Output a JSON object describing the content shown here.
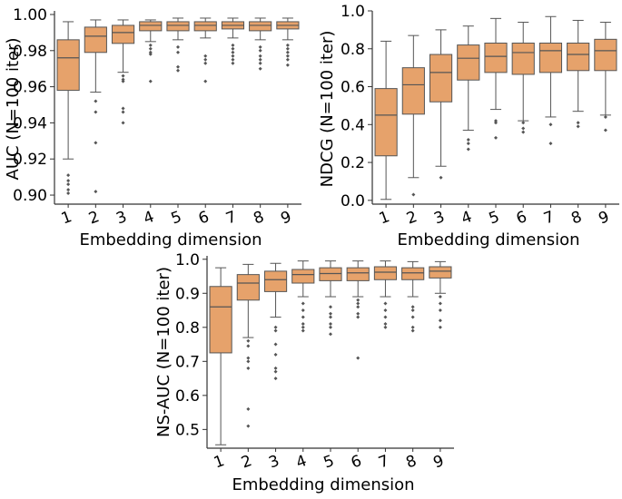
{
  "colors": {
    "box_fill": "#E6A26B",
    "box_edge": "#555555",
    "outlier": "#555555",
    "axis": "#333333"
  },
  "chart_data": [
    {
      "type": "boxplot",
      "id": "auc",
      "title": "",
      "xlabel": "Embedding dimension",
      "ylabel": "AUC (N=100 iter)",
      "categories": [
        "1",
        "2",
        "3",
        "4",
        "5",
        "6",
        "7",
        "8",
        "9"
      ],
      "ylim": [
        0.895,
        1.002
      ],
      "yticks": [
        0.9,
        0.92,
        0.94,
        0.96,
        0.98,
        1.0
      ],
      "ytick_labels": [
        "0.90",
        "0.92",
        "0.94",
        "0.96",
        "0.98",
        "1.00"
      ],
      "boxes": [
        {
          "whislo": 0.92,
          "q1": 0.958,
          "med": 0.976,
          "q3": 0.986,
          "whishi": 0.996,
          "fliers": [
            0.911,
            0.908,
            0.906,
            0.903,
            0.901
          ]
        },
        {
          "whislo": 0.957,
          "q1": 0.979,
          "med": 0.988,
          "q3": 0.993,
          "whishi": 0.997,
          "fliers": [
            0.952,
            0.946,
            0.929,
            0.902
          ]
        },
        {
          "whislo": 0.968,
          "q1": 0.984,
          "med": 0.99,
          "q3": 0.994,
          "whishi": 0.997,
          "fliers": [
            0.966,
            0.964,
            0.963,
            0.948,
            0.946,
            0.94
          ]
        },
        {
          "whislo": 0.985,
          "q1": 0.991,
          "med": 0.994,
          "q3": 0.996,
          "whishi": 0.997,
          "fliers": [
            0.983,
            0.981,
            0.979,
            0.978,
            0.963
          ]
        },
        {
          "whislo": 0.986,
          "q1": 0.991,
          "med": 0.994,
          "q3": 0.996,
          "whishi": 0.998,
          "fliers": [
            0.982,
            0.979,
            0.971,
            0.969
          ]
        },
        {
          "whislo": 0.987,
          "q1": 0.991,
          "med": 0.994,
          "q3": 0.996,
          "whishi": 0.998,
          "fliers": [
            0.977,
            0.975,
            0.973,
            0.963
          ]
        },
        {
          "whislo": 0.987,
          "q1": 0.992,
          "med": 0.994,
          "q3": 0.996,
          "whishi": 0.998,
          "fliers": [
            0.983,
            0.981,
            0.979,
            0.977,
            0.975,
            0.973
          ]
        },
        {
          "whislo": 0.986,
          "q1": 0.991,
          "med": 0.994,
          "q3": 0.996,
          "whishi": 0.998,
          "fliers": [
            0.982,
            0.98,
            0.977,
            0.975,
            0.973,
            0.97
          ]
        },
        {
          "whislo": 0.986,
          "q1": 0.992,
          "med": 0.994,
          "q3": 0.996,
          "whishi": 0.998,
          "fliers": [
            0.983,
            0.981,
            0.979,
            0.977,
            0.975,
            0.972
          ]
        }
      ]
    },
    {
      "type": "boxplot",
      "id": "ndcg",
      "title": "",
      "xlabel": "Embedding dimension",
      "ylabel": "NDCG (N=100 iter)",
      "categories": [
        "1",
        "2",
        "3",
        "4",
        "5",
        "6",
        "7",
        "8",
        "9"
      ],
      "ylim": [
        -0.02,
        1.0
      ],
      "yticks": [
        0.0,
        0.2,
        0.4,
        0.6,
        0.8,
        1.0
      ],
      "ytick_labels": [
        "0.0",
        "0.2",
        "0.4",
        "0.6",
        "0.8",
        "1.0"
      ],
      "boxes": [
        {
          "whislo": 0.005,
          "q1": 0.235,
          "med": 0.45,
          "q3": 0.59,
          "whishi": 0.84,
          "fliers": []
        },
        {
          "whislo": 0.12,
          "q1": 0.455,
          "med": 0.61,
          "q3": 0.7,
          "whishi": 0.87,
          "fliers": [
            0.03
          ]
        },
        {
          "whislo": 0.18,
          "q1": 0.52,
          "med": 0.675,
          "q3": 0.77,
          "whishi": 0.9,
          "fliers": [
            0.12
          ]
        },
        {
          "whislo": 0.37,
          "q1": 0.635,
          "med": 0.75,
          "q3": 0.82,
          "whishi": 0.92,
          "fliers": [
            0.32,
            0.3,
            0.27
          ]
        },
        {
          "whislo": 0.48,
          "q1": 0.675,
          "med": 0.76,
          "q3": 0.83,
          "whishi": 0.96,
          "fliers": [
            0.42,
            0.41,
            0.33
          ]
        },
        {
          "whislo": 0.42,
          "q1": 0.665,
          "med": 0.78,
          "q3": 0.83,
          "whishi": 0.94,
          "fliers": [
            0.41,
            0.38,
            0.36
          ]
        },
        {
          "whislo": 0.44,
          "q1": 0.675,
          "med": 0.79,
          "q3": 0.83,
          "whishi": 0.97,
          "fliers": [
            0.4,
            0.3
          ]
        },
        {
          "whislo": 0.47,
          "q1": 0.685,
          "med": 0.77,
          "q3": 0.83,
          "whishi": 0.95,
          "fliers": [
            0.41,
            0.39
          ]
        },
        {
          "whislo": 0.45,
          "q1": 0.685,
          "med": 0.79,
          "q3": 0.85,
          "whishi": 0.94,
          "fliers": [
            0.44,
            0.37
          ]
        }
      ]
    },
    {
      "type": "boxplot",
      "id": "ns-auc",
      "title": "",
      "xlabel": "Embedding dimension",
      "ylabel": "NS-AUC (N=100 iter)",
      "categories": [
        "1",
        "2",
        "3",
        "4",
        "5",
        "6",
        "7",
        "8",
        "9"
      ],
      "ylim": [
        0.445,
        1.01
      ],
      "yticks": [
        0.5,
        0.6,
        0.7,
        0.8,
        0.9,
        1.0
      ],
      "ytick_labels": [
        "0.5",
        "0.6",
        "0.7",
        "0.8",
        "0.9",
        "1.0"
      ],
      "boxes": [
        {
          "whislo": 0.455,
          "q1": 0.725,
          "med": 0.86,
          "q3": 0.92,
          "whishi": 0.975,
          "fliers": []
        },
        {
          "whislo": 0.77,
          "q1": 0.88,
          "med": 0.93,
          "q3": 0.955,
          "whishi": 0.985,
          "fliers": [
            0.76,
            0.745,
            0.71,
            0.7,
            0.68,
            0.56,
            0.51
          ]
        },
        {
          "whislo": 0.83,
          "q1": 0.905,
          "med": 0.94,
          "q3": 0.965,
          "whishi": 0.988,
          "fliers": [
            0.8,
            0.79,
            0.75,
            0.72,
            0.68,
            0.67,
            0.65
          ]
        },
        {
          "whislo": 0.89,
          "q1": 0.93,
          "med": 0.955,
          "q3": 0.97,
          "whishi": 0.995,
          "fliers": [
            0.87,
            0.85,
            0.83,
            0.81,
            0.8,
            0.79
          ]
        },
        {
          "whislo": 0.89,
          "q1": 0.937,
          "med": 0.958,
          "q3": 0.975,
          "whishi": 0.995,
          "fliers": [
            0.86,
            0.84,
            0.83,
            0.81,
            0.8,
            0.78
          ]
        },
        {
          "whislo": 0.89,
          "q1": 0.937,
          "med": 0.96,
          "q3": 0.975,
          "whishi": 0.995,
          "fliers": [
            0.88,
            0.87,
            0.86,
            0.84,
            0.83,
            0.71
          ]
        },
        {
          "whislo": 0.89,
          "q1": 0.94,
          "med": 0.962,
          "q3": 0.978,
          "whishi": 0.995,
          "fliers": [
            0.87,
            0.85,
            0.83,
            0.81,
            0.8
          ]
        },
        {
          "whislo": 0.89,
          "q1": 0.94,
          "med": 0.96,
          "q3": 0.975,
          "whishi": 0.993,
          "fliers": [
            0.86,
            0.85,
            0.83,
            0.8,
            0.79
          ]
        },
        {
          "whislo": 0.9,
          "q1": 0.945,
          "med": 0.965,
          "q3": 0.978,
          "whishi": 0.993,
          "fliers": [
            0.89,
            0.87,
            0.85,
            0.82,
            0.8
          ]
        }
      ]
    }
  ]
}
